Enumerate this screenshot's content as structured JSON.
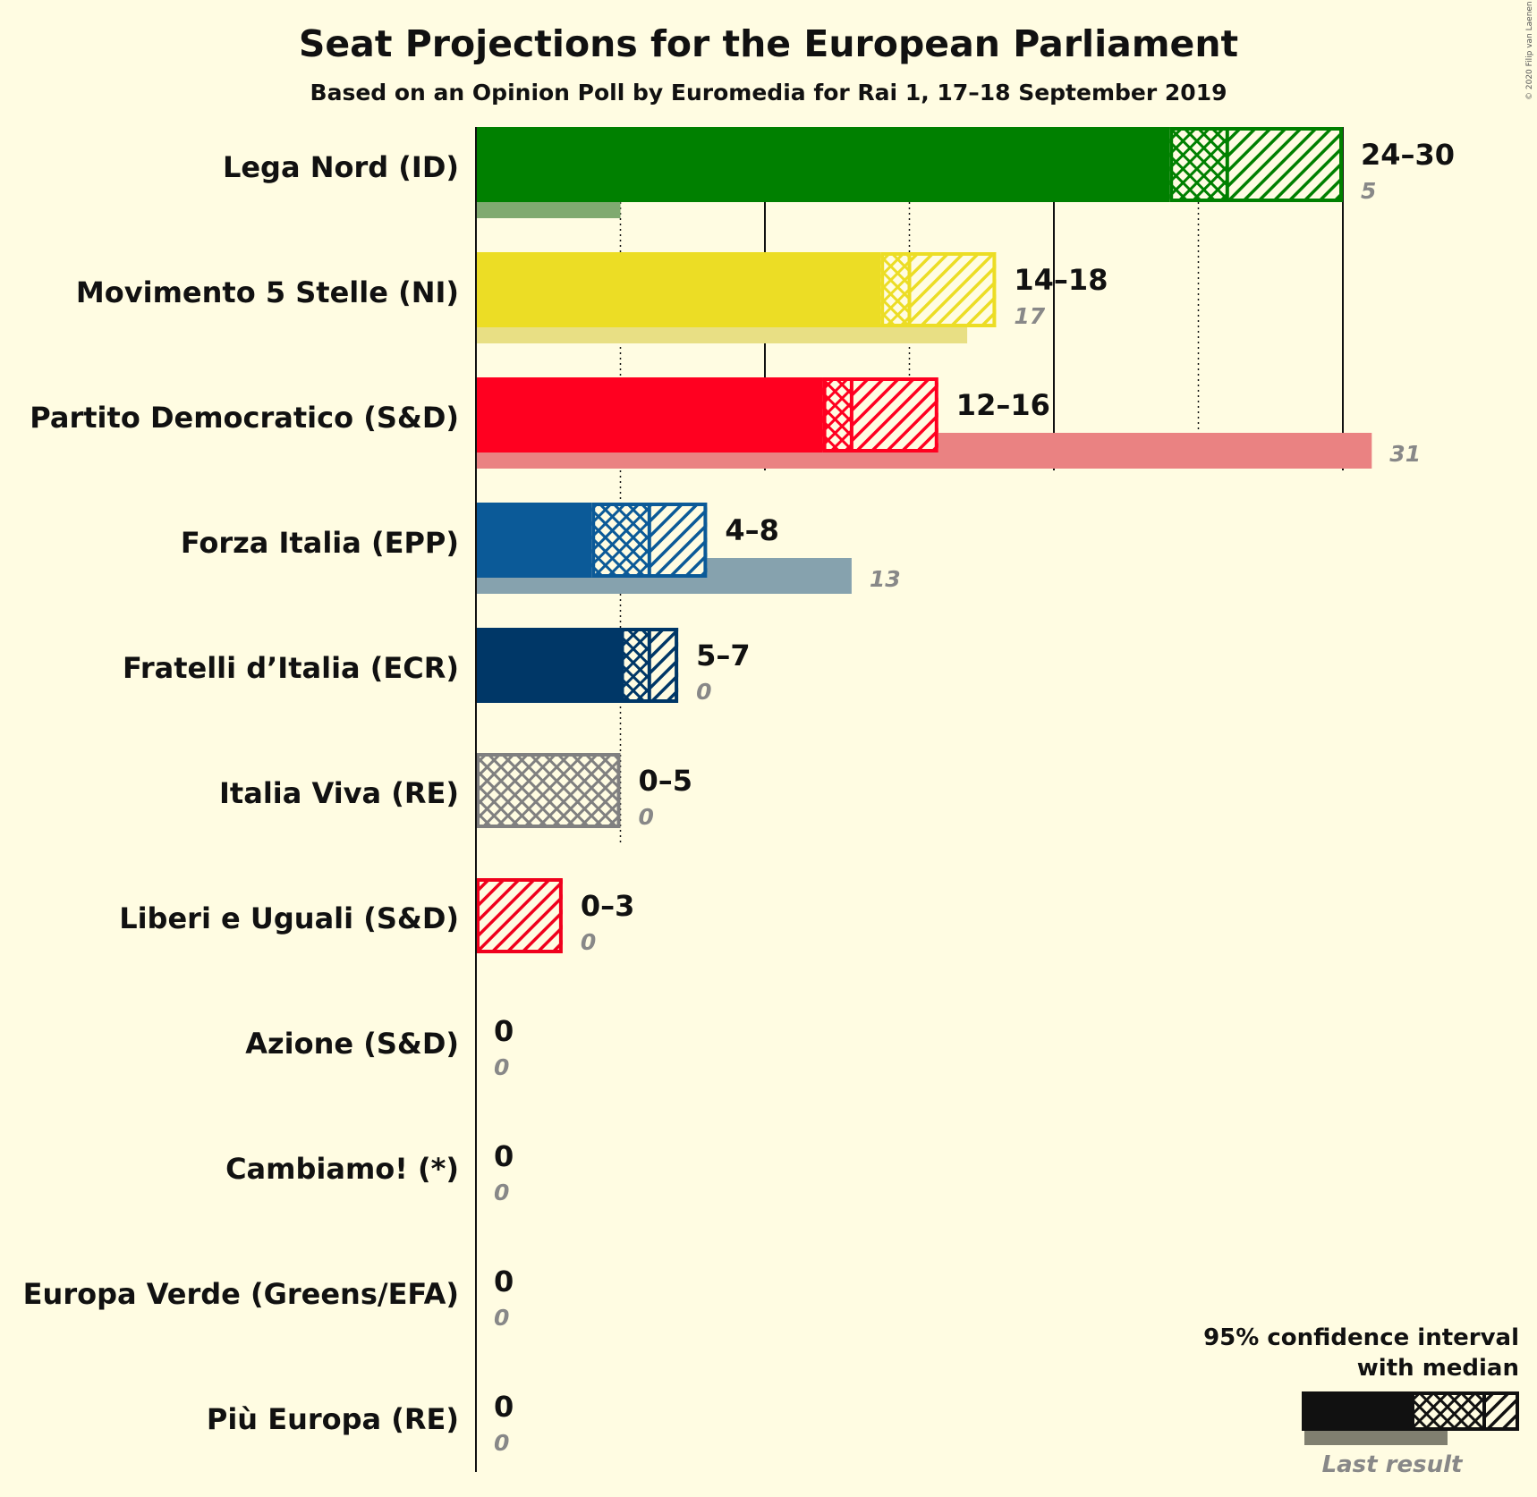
{
  "title": "Seat Projections for the European Parliament",
  "subtitle": "Based on an Opinion Poll by Euromedia for Rai 1, 17–18 September 2019",
  "copyright": "© 2020 Filip van Laenen",
  "legend": {
    "line1": "95% confidence interval",
    "line2": "with median",
    "last_result": "Last result",
    "color": "#111111"
  },
  "chart_data": {
    "type": "bar",
    "orientation": "horizontal",
    "xlim": [
      0,
      31
    ],
    "gridlines_solid": [
      10,
      20,
      30
    ],
    "gridlines_dotted": [
      5,
      15,
      25
    ],
    "series_fields": [
      "low",
      "median",
      "high",
      "last"
    ],
    "parties": [
      {
        "name": "Lega Nord (ID)",
        "low": 24,
        "median": 26,
        "high": 30,
        "last": 5,
        "range_label": "24–30",
        "last_label": "5",
        "color": "#008000",
        "last_color": "#80AA70"
      },
      {
        "name": "Movimento 5 Stelle (NI)",
        "low": 14,
        "median": 15,
        "high": 18,
        "last": 17,
        "range_label": "14–18",
        "last_label": "17",
        "color": "#ECDD25",
        "last_color": "#E8DF84"
      },
      {
        "name": "Partito Democratico (S&D)",
        "low": 12,
        "median": 13,
        "high": 16,
        "last": 31,
        "range_label": "12–16",
        "last_label": "31",
        "color": "#FF0020",
        "last_color": "#EA8282"
      },
      {
        "name": "Forza Italia (EPP)",
        "low": 4,
        "median": 6,
        "high": 8,
        "last": 13,
        "range_label": "4–8",
        "last_label": "13",
        "color": "#0B5A98",
        "last_color": "#86A2AE"
      },
      {
        "name": "Fratelli d’Italia (ECR)",
        "low": 5,
        "median": 6,
        "high": 7,
        "last": 0,
        "range_label": "5–7",
        "last_label": "0",
        "color": "#003767",
        "last_color": "#8091A5"
      },
      {
        "name": "Italia Viva (RE)",
        "low": 0,
        "median": 5,
        "high": 5,
        "last": 0,
        "range_label": "0–5",
        "last_label": "0",
        "color": "#808080",
        "last_color": "#B8B8B0"
      },
      {
        "name": "Liberi e Uguali (S&D)",
        "low": 0,
        "median": 0,
        "high": 3,
        "last": 0,
        "range_label": "0–3",
        "last_label": "0",
        "color": "#F0001C",
        "last_color": "#EA8282"
      },
      {
        "name": "Azione (S&D)",
        "low": 0,
        "median": 0,
        "high": 0,
        "last": 0,
        "range_label": "0",
        "last_label": "0",
        "color": "#3D6BA6",
        "last_color": "#9AA8B8"
      },
      {
        "name": "Cambiamo! (*)",
        "low": 0,
        "median": 0,
        "high": 0,
        "last": 0,
        "range_label": "0",
        "last_label": "0",
        "color": "#E07020",
        "last_color": "#E0B090"
      },
      {
        "name": "Europa Verde (Greens/EFA)",
        "low": 0,
        "median": 0,
        "high": 0,
        "last": 0,
        "range_label": "0",
        "last_label": "0",
        "color": "#4AA33A",
        "last_color": "#A0C890"
      },
      {
        "name": "Più Europa (RE)",
        "low": 0,
        "median": 0,
        "high": 0,
        "last": 0,
        "range_label": "0",
        "last_label": "0",
        "color": "#D6B400",
        "last_color": "#E0D090"
      }
    ]
  }
}
